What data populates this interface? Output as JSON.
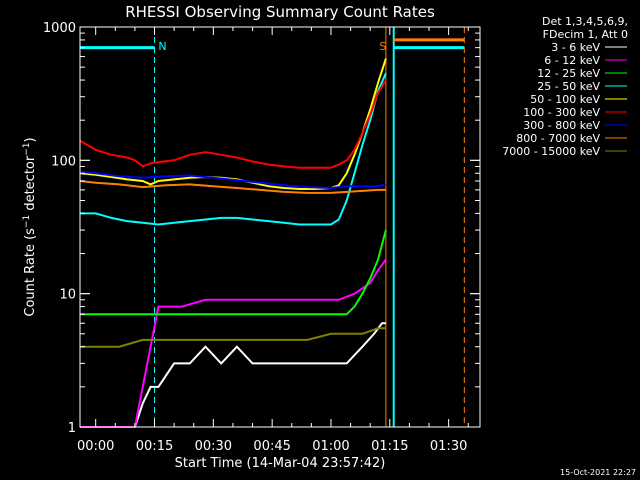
{
  "chart_data": {
    "type": "line",
    "title": "RHESSI Observing Summary Count Rates",
    "xlabel": "Start Time (14-Mar-04 23:57:42)",
    "ylabel": "Count Rate (s⁻¹ detector⁻¹)",
    "ylabel_main": "Count Rate (s",
    "ylabel_sup1": "−1",
    "ylabel_mid": " detector",
    "ylabel_sup2": "−1",
    "ylabel_end": ")",
    "footer_date": "15-Oct-2021 22:27",
    "yscale": "log",
    "ylim": [
      1,
      1000
    ],
    "xlim_min": [
      -4,
      98
    ],
    "x_tick_labels": [
      {
        "t": 0,
        "label": "00:00"
      },
      {
        "t": 15,
        "label": "00:15"
      },
      {
        "t": 30,
        "label": "00:30"
      },
      {
        "t": 45,
        "label": "00:45"
      },
      {
        "t": 60,
        "label": "01:00"
      },
      {
        "t": 75,
        "label": "01:15"
      },
      {
        "t": 90,
        "label": "01:30"
      }
    ],
    "y_tick_labels": [
      {
        "v": 1,
        "label": "1"
      },
      {
        "v": 10,
        "label": "10"
      },
      {
        "v": 100,
        "label": "100"
      },
      {
        "v": 1000,
        "label": "1000"
      }
    ],
    "legend_header": [
      "Det 1,3,4,5,6,9,",
      "FDecim 1, Att 0"
    ],
    "legend_placement": "right",
    "series": [
      {
        "name": "3 - 6 keV",
        "color": "#ffffff",
        "x": [
          -4,
          10,
          12,
          14,
          16,
          20,
          24,
          28,
          32,
          36,
          40,
          44,
          48,
          52,
          56,
          60,
          64,
          68,
          71,
          73,
          74
        ],
        "y": [
          1,
          1,
          1.5,
          2,
          2,
          3,
          3,
          4,
          3,
          4,
          3,
          3,
          3,
          3,
          3,
          3,
          3,
          4,
          5,
          6,
          6
        ]
      },
      {
        "name": "6 - 12 keV",
        "color": "#ff00ff",
        "x": [
          -4,
          10,
          16,
          22,
          28,
          34,
          40,
          46,
          52,
          58,
          62,
          66,
          70,
          72,
          74
        ],
        "y": [
          1,
          1,
          8,
          8,
          9,
          9,
          9,
          9,
          9,
          9,
          9,
          10,
          12,
          15,
          18
        ]
      },
      {
        "name": "12 - 25 keV",
        "color": "#00ff00",
        "x": [
          -4,
          0,
          6,
          12,
          18,
          24,
          30,
          36,
          42,
          48,
          54,
          60,
          64,
          66,
          68,
          70,
          72,
          74
        ],
        "y": [
          7,
          7,
          7,
          7,
          7,
          7,
          7,
          7,
          7,
          7,
          7,
          7,
          7,
          8,
          10,
          13,
          18,
          30
        ]
      },
      {
        "name": "25 - 50 keV",
        "color": "#00ffff",
        "x": [
          -4,
          0,
          4,
          8,
          12,
          16,
          20,
          24,
          28,
          32,
          36,
          40,
          44,
          48,
          52,
          56,
          60,
          62,
          64,
          66,
          68,
          70,
          72,
          74
        ],
        "y": [
          40,
          40,
          37,
          35,
          34,
          33,
          34,
          35,
          36,
          37,
          37,
          36,
          35,
          34,
          33,
          33,
          33,
          36,
          50,
          80,
          130,
          200,
          330,
          450
        ]
      },
      {
        "name": "50 - 100 keV",
        "color": "#ffff00",
        "x": [
          -4,
          0,
          4,
          8,
          12,
          14,
          16,
          20,
          24,
          28,
          32,
          36,
          40,
          44,
          48,
          52,
          56,
          60,
          62,
          64,
          66,
          68,
          70,
          72,
          74
        ],
        "y": [
          80,
          78,
          75,
          72,
          70,
          66,
          70,
          72,
          74,
          75,
          74,
          72,
          68,
          64,
          62,
          61,
          61,
          62,
          65,
          80,
          110,
          160,
          240,
          380,
          580
        ]
      },
      {
        "name": "100 - 300 keV",
        "color": "#ff0000",
        "x": [
          -4,
          0,
          4,
          8,
          10,
          12,
          14,
          16,
          20,
          24,
          28,
          32,
          36,
          40,
          44,
          48,
          52,
          56,
          60,
          62,
          64,
          66,
          68,
          70,
          72,
          74
        ],
        "y": [
          140,
          120,
          110,
          105,
          100,
          90,
          95,
          97,
          100,
          110,
          115,
          110,
          105,
          98,
          93,
          90,
          88,
          88,
          88,
          93,
          100,
          120,
          160,
          220,
          320,
          400
        ]
      },
      {
        "name": "300 - 800 keV",
        "color": "#0000ff",
        "x": [
          -4,
          0,
          6,
          12,
          18,
          24,
          30,
          36,
          42,
          48,
          54,
          60,
          64,
          68,
          72,
          74
        ],
        "y": [
          82,
          80,
          76,
          74,
          76,
          77,
          74,
          71,
          68,
          65,
          63,
          62,
          64,
          64,
          64,
          66
        ]
      },
      {
        "name": "800 - 7000 keV",
        "color": "#ff8000",
        "x": [
          -4,
          0,
          6,
          12,
          18,
          24,
          30,
          36,
          42,
          48,
          54,
          60,
          64,
          68,
          72,
          74
        ],
        "y": [
          70,
          68,
          66,
          63,
          65,
          66,
          64,
          62,
          60,
          58,
          57,
          57,
          58,
          59,
          60,
          60
        ]
      },
      {
        "name": "7000 - 15000 keV",
        "color": "#808000",
        "x": [
          -4,
          0,
          6,
          12,
          18,
          24,
          30,
          36,
          42,
          48,
          54,
          60,
          64,
          68,
          72,
          74
        ],
        "y": [
          4,
          4,
          4,
          4.5,
          4.5,
          4.5,
          4.5,
          4.5,
          4.5,
          4.5,
          4.5,
          5,
          5,
          5,
          5.5,
          5.5
        ]
      }
    ],
    "annotations": [
      {
        "text": "N",
        "color": "#00ffff",
        "x": 15
      },
      {
        "text": "S",
        "color": "#ff8000",
        "x": 74
      }
    ],
    "markers": [
      {
        "kind": "cyan_bar",
        "x0": -4,
        "x1": 15,
        "y": 700
      },
      {
        "kind": "cyan_dashed",
        "x": -4
      },
      {
        "kind": "cyan_dashed",
        "x": 15
      },
      {
        "kind": "orange_solid",
        "x": 74
      },
      {
        "kind": "cyan_solid",
        "x": 76
      },
      {
        "kind": "cyan_bar",
        "x0": 76,
        "x1": 94,
        "y": 700
      },
      {
        "kind": "orange_bar",
        "x0": 76,
        "x1": 94,
        "y": 800
      },
      {
        "kind": "orange_dashed",
        "x": 94
      }
    ]
  }
}
